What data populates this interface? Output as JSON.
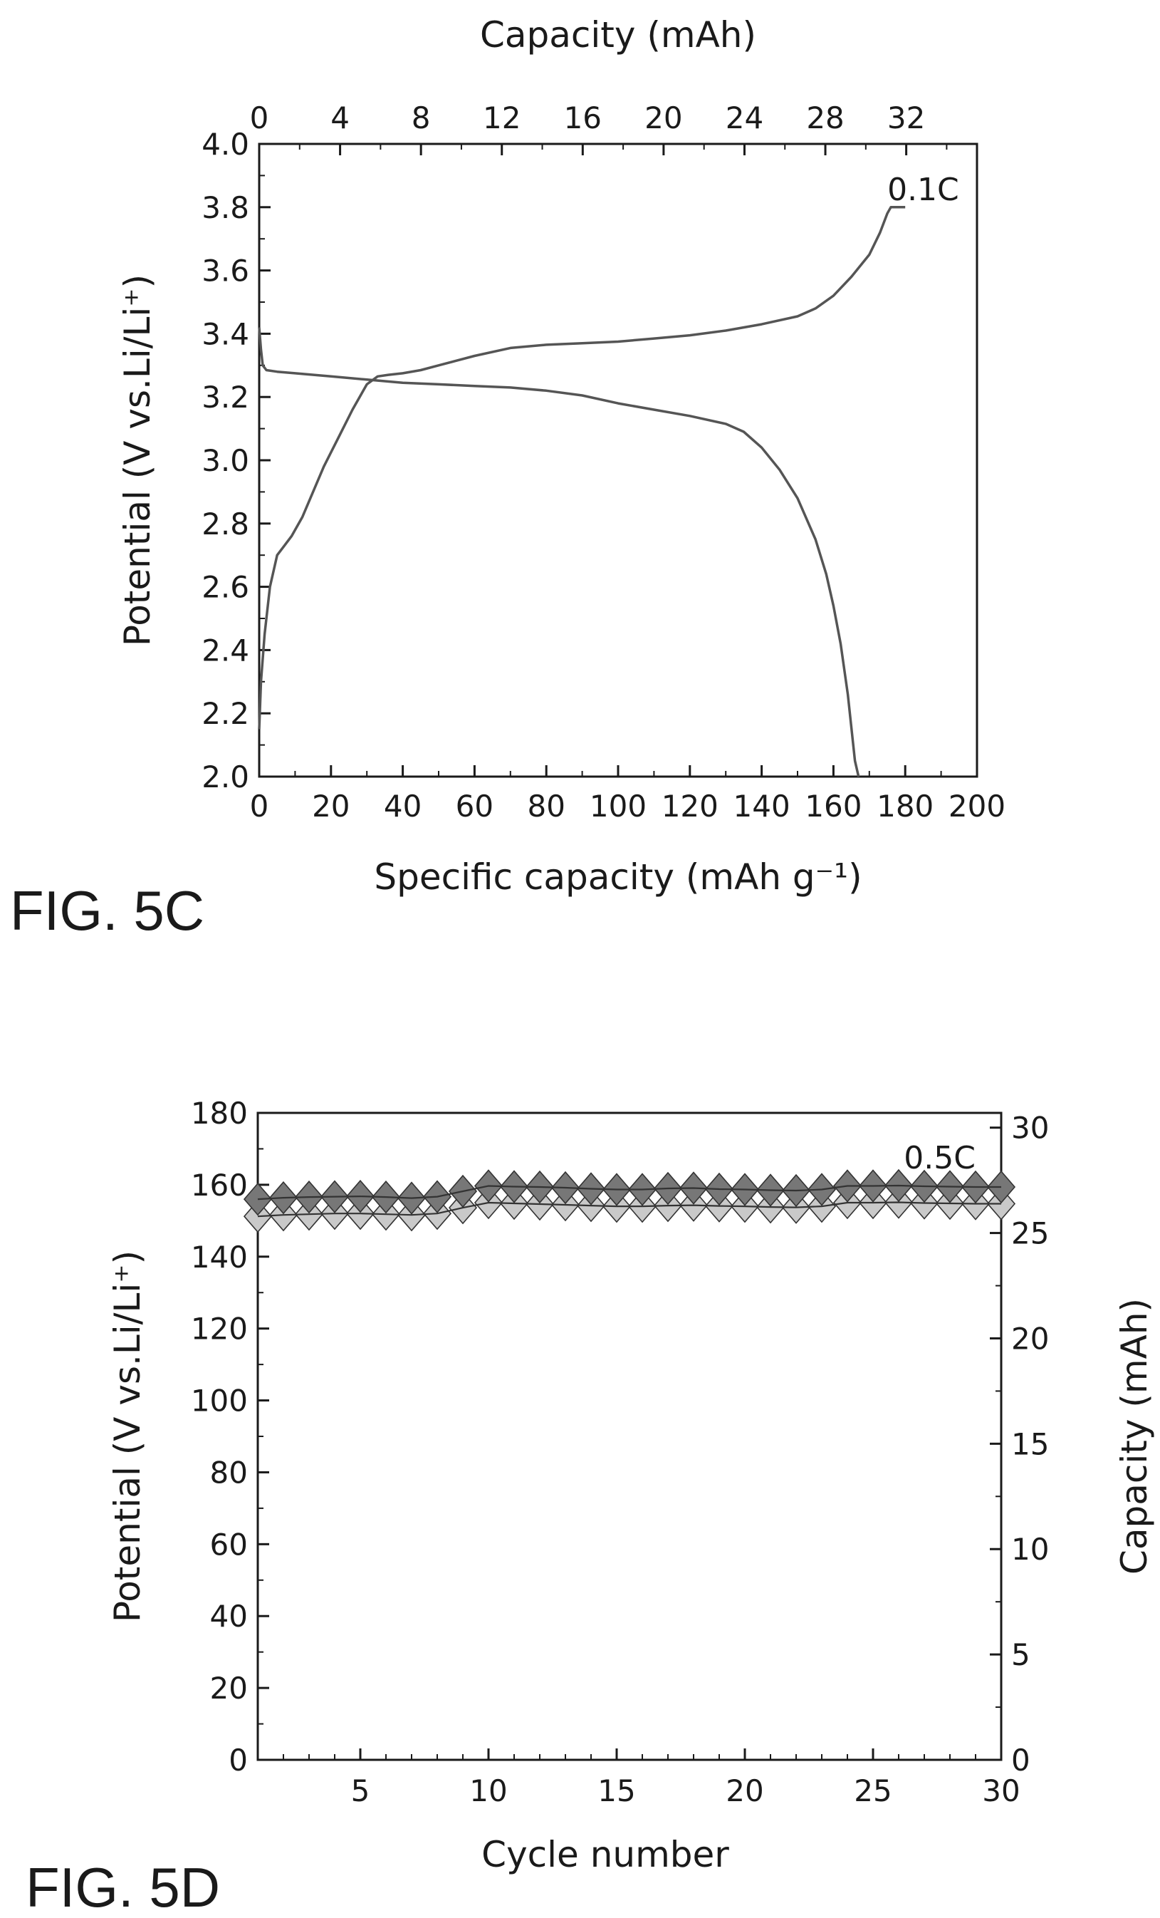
{
  "figures": {
    "fig5c_label": "FIG. 5C",
    "fig5d_label": "FIG. 5D"
  },
  "chart_data": [
    {
      "type": "line",
      "figure": "FIG. 5C",
      "title": "",
      "xlabel": "Specific capacity (mAh g⁻¹)",
      "x2label": "Capacity (mAh)",
      "ylabel": "Potential (V vs.Li/Li⁺)",
      "xlim": [
        0,
        200
      ],
      "x2lim": [
        0,
        35.5
      ],
      "ylim": [
        2.0,
        4.0
      ],
      "xticks": [
        0,
        20,
        40,
        60,
        80,
        100,
        120,
        140,
        160,
        180,
        200
      ],
      "x2ticks": [
        0,
        4,
        8,
        12,
        16,
        20,
        24,
        28,
        32
      ],
      "yticks": [
        2.0,
        2.2,
        2.4,
        2.6,
        2.8,
        3.0,
        3.2,
        3.4,
        3.6,
        3.8,
        4.0
      ],
      "annotation": "0.1C",
      "annotation_at": [
        177,
        3.8
      ],
      "grid": false,
      "series": [
        {
          "role": "charge",
          "color": "#555555",
          "points": [
            [
              0,
              2.15
            ],
            [
              0.5,
              2.3
            ],
            [
              1.5,
              2.45
            ],
            [
              3,
              2.6
            ],
            [
              5,
              2.7
            ],
            [
              7,
              2.73
            ],
            [
              9,
              2.76
            ],
            [
              12,
              2.82
            ],
            [
              15,
              2.9
            ],
            [
              18,
              2.98
            ],
            [
              22,
              3.07
            ],
            [
              26,
              3.16
            ],
            [
              30,
              3.24
            ],
            [
              33,
              3.265
            ],
            [
              36,
              3.27
            ],
            [
              40,
              3.275
            ],
            [
              45,
              3.285
            ],
            [
              50,
              3.3
            ],
            [
              60,
              3.33
            ],
            [
              70,
              3.355
            ],
            [
              80,
              3.365
            ],
            [
              90,
              3.37
            ],
            [
              100,
              3.375
            ],
            [
              110,
              3.385
            ],
            [
              120,
              3.395
            ],
            [
              130,
              3.41
            ],
            [
              140,
              3.43
            ],
            [
              150,
              3.455
            ],
            [
              155,
              3.48
            ],
            [
              160,
              3.52
            ],
            [
              165,
              3.58
            ],
            [
              170,
              3.65
            ],
            [
              173,
              3.72
            ],
            [
              175,
              3.78
            ],
            [
              176,
              3.8
            ],
            [
              180,
              3.8
            ]
          ]
        },
        {
          "role": "discharge",
          "color": "#555555",
          "points": [
            [
              0,
              3.42
            ],
            [
              0.5,
              3.35
            ],
            [
              1,
              3.3
            ],
            [
              2,
              3.285
            ],
            [
              5,
              3.28
            ],
            [
              10,
              3.275
            ],
            [
              20,
              3.265
            ],
            [
              30,
              3.255
            ],
            [
              40,
              3.245
            ],
            [
              50,
              3.24
            ],
            [
              60,
              3.235
            ],
            [
              70,
              3.23
            ],
            [
              80,
              3.22
            ],
            [
              90,
              3.205
            ],
            [
              100,
              3.18
            ],
            [
              110,
              3.16
            ],
            [
              120,
              3.14
            ],
            [
              130,
              3.115
            ],
            [
              135,
              3.09
            ],
            [
              140,
              3.04
            ],
            [
              145,
              2.97
            ],
            [
              150,
              2.88
            ],
            [
              155,
              2.75
            ],
            [
              158,
              2.64
            ],
            [
              160,
              2.54
            ],
            [
              162,
              2.42
            ],
            [
              164,
              2.26
            ],
            [
              166,
              2.05
            ],
            [
              167,
              2.0
            ]
          ]
        }
      ]
    },
    {
      "type": "scatter",
      "figure": "FIG. 5D",
      "title": "",
      "xlabel": "Cycle number",
      "ylabel": "Potential (V vs.Li/Li⁺)",
      "y2label": "Capacity (mAh)",
      "xlim": [
        1,
        30
      ],
      "ylim": [
        0,
        180
      ],
      "y2lim": [
        0,
        30.7
      ],
      "xticks": [
        5,
        10,
        15,
        20,
        25,
        30
      ],
      "yticks": [
        0,
        20,
        40,
        60,
        80,
        100,
        120,
        140,
        160,
        180
      ],
      "y2ticks": [
        0,
        5,
        10,
        15,
        20,
        25,
        30
      ],
      "annotation": "0.5C",
      "grid": false,
      "x": [
        1,
        2,
        3,
        4,
        5,
        6,
        7,
        8,
        9,
        10,
        11,
        12,
        13,
        14,
        15,
        16,
        17,
        18,
        19,
        20,
        21,
        22,
        23,
        24,
        25,
        26,
        27,
        28,
        29,
        30
      ],
      "series": [
        {
          "role": "dark-diamond",
          "color": "#777777",
          "values": [
            154.8,
            155.2,
            155.4,
            155.5,
            155.6,
            155.4,
            155.1,
            155.5,
            157.0,
            158.5,
            158.3,
            158.2,
            158.0,
            157.7,
            157.5,
            157.5,
            157.8,
            157.9,
            157.6,
            157.5,
            157.3,
            157.2,
            157.5,
            158.5,
            158.5,
            158.6,
            158.4,
            158.3,
            158.2,
            158.2
          ]
        },
        {
          "role": "light-diamond",
          "color": "#c9c9c9",
          "values": [
            153.2,
            153.6,
            153.8,
            154.0,
            154.0,
            153.8,
            153.6,
            154.0,
            155.6,
            157.0,
            156.8,
            156.6,
            156.4,
            156.2,
            156.0,
            156.0,
            156.2,
            156.3,
            156.1,
            156.0,
            155.8,
            155.7,
            156.0,
            157.0,
            157.0,
            157.1,
            156.9,
            156.8,
            156.7,
            156.7
          ]
        }
      ]
    }
  ]
}
